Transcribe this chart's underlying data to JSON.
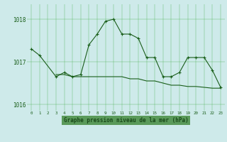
{
  "title": "Graphe pression niveau de la mer (hPa)",
  "x_values": [
    0,
    1,
    2,
    3,
    4,
    5,
    6,
    7,
    8,
    9,
    10,
    11,
    12,
    13,
    14,
    15,
    16,
    17,
    18,
    19,
    20,
    21,
    22,
    23
  ],
  "line1": [
    1017.3,
    1017.15,
    null,
    1016.65,
    1016.75,
    1016.65,
    1016.7,
    1017.4,
    1017.65,
    1017.95,
    1018.0,
    1017.65,
    1017.65,
    1017.55,
    1017.1,
    1017.1,
    1016.65,
    1016.65,
    1016.75,
    1017.1,
    1017.1,
    1017.1,
    1016.8,
    1016.4
  ],
  "line2": [
    null,
    null,
    null,
    1016.7,
    1016.7,
    1016.65,
    1016.65,
    1016.65,
    1016.65,
    1016.65,
    1016.65,
    1016.65,
    1016.6,
    1016.6,
    1016.55,
    1016.55,
    1016.5,
    1016.45,
    1016.45,
    1016.42,
    1016.42,
    1016.4,
    1016.38,
    1016.38
  ],
  "ylim": [
    1015.85,
    1018.35
  ],
  "yticks": [
    1016,
    1017,
    1018
  ],
  "line_color": "#1a5e1a",
  "bg_color": "#ceeaea",
  "grid_color": "#3aaa3a",
  "label_color": "#1a5e1a",
  "title_color": "#1a4a1a",
  "title_bg": "#5a9a5a",
  "figsize": [
    3.2,
    2.0
  ],
  "dpi": 100
}
